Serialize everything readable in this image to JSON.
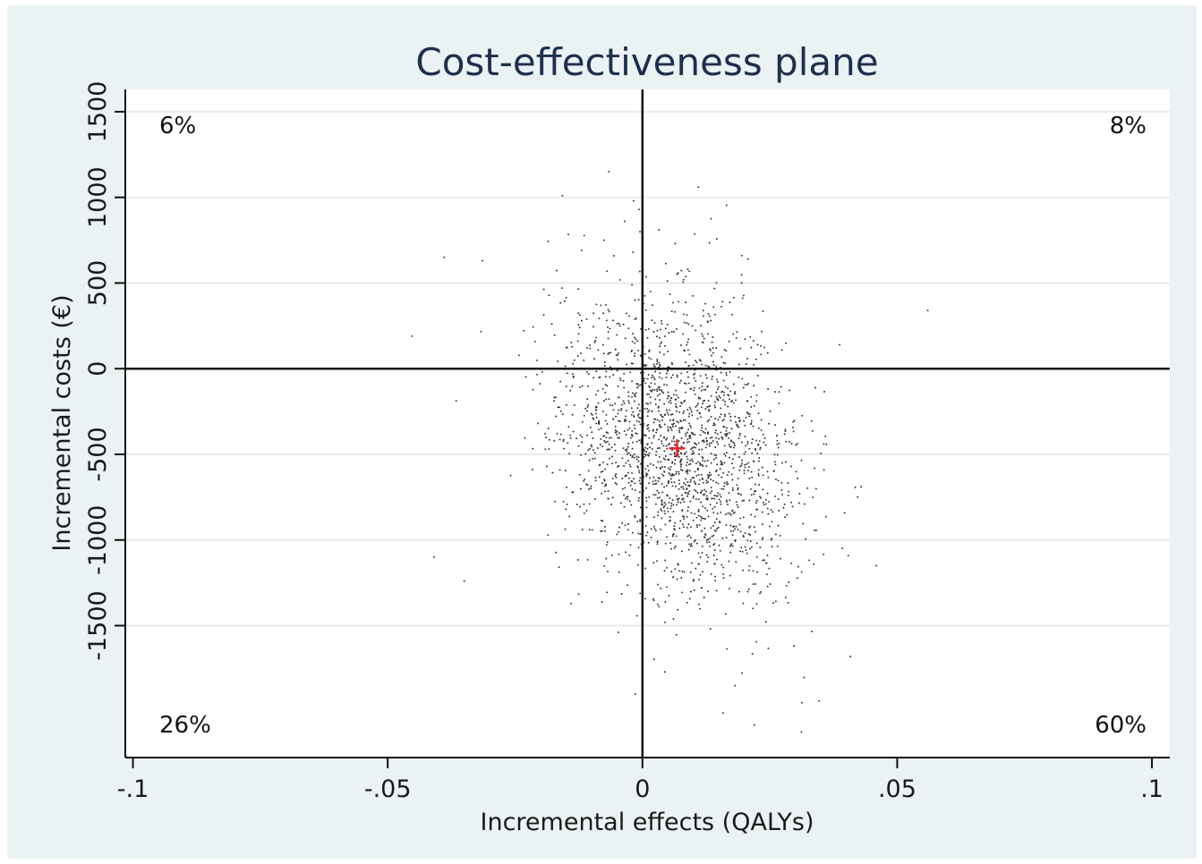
{
  "chart_data": {
    "type": "scatter",
    "title": "Cost-effectiveness plane",
    "xlabel": "Incremental effects (QALYs)",
    "ylabel": "Incremental costs (€)",
    "xlim": [
      -0.1015,
      0.1035
    ],
    "ylim": [
      -2270,
      1630
    ],
    "x_ticks": [
      -0.1,
      -0.05,
      0,
      0.05,
      0.1
    ],
    "x_tick_labels": [
      "-.1",
      "-.05",
      "0",
      ".05",
      ".1"
    ],
    "y_ticks": [
      -1500,
      -1000,
      -500,
      0,
      500,
      1000,
      1500
    ],
    "y_tick_labels": [
      "-1500",
      "-1000",
      "-500",
      "0",
      "500",
      "1000",
      "1500"
    ],
    "grid": true,
    "quadrant_labels": {
      "top_left": "6%",
      "top_right": "8%",
      "bottom_left": "26%",
      "bottom_right": "60%"
    },
    "point_estimate": {
      "x": 0.0068,
      "y": -465,
      "marker": "+",
      "color": "#e8202c"
    },
    "point_cloud": {
      "n": 2000,
      "x_mean": 0.0068,
      "x_sd": 0.0118,
      "y_mean": -465,
      "y_sd": 430,
      "correlation": -0.25,
      "seed": 20240117
    },
    "outlier_points": [
      {
        "x": -0.0066,
        "y": 1150
      },
      {
        "x": -0.0157,
        "y": 1010
      },
      {
        "x": -0.0035,
        "y": 860
      },
      {
        "x": -0.0005,
        "y": 800
      },
      {
        "x": -0.0389,
        "y": 650
      },
      {
        "x": -0.0314,
        "y": 630
      },
      {
        "x": 0.0195,
        "y": 660
      },
      {
        "x": 0.0207,
        "y": 640
      },
      {
        "x": 0.0089,
        "y": 580
      },
      {
        "x": 0.056,
        "y": 340
      },
      {
        "x": -0.0452,
        "y": 190
      },
      {
        "x": 0.0387,
        "y": 140
      },
      {
        "x": -0.0409,
        "y": -1100
      },
      {
        "x": -0.035,
        "y": -1240
      },
      {
        "x": 0.0459,
        "y": -1150
      },
      {
        "x": 0.0408,
        "y": -1680
      },
      {
        "x": 0.0313,
        "y": -1950
      },
      {
        "x": 0.0312,
        "y": -2120
      },
      {
        "x": 0.022,
        "y": -2080
      },
      {
        "x": -0.0014,
        "y": -1900
      },
      {
        "x": 0.0158,
        "y": -2010
      },
      {
        "x": 0.0044,
        "y": -1770
      }
    ],
    "colors": {
      "background": "#eaf2f3",
      "plot_area": "#ffffff",
      "grid": "#e3ebed",
      "axis": "#111111",
      "points": "#2d2d2d",
      "title": "#1e2f4e"
    }
  }
}
